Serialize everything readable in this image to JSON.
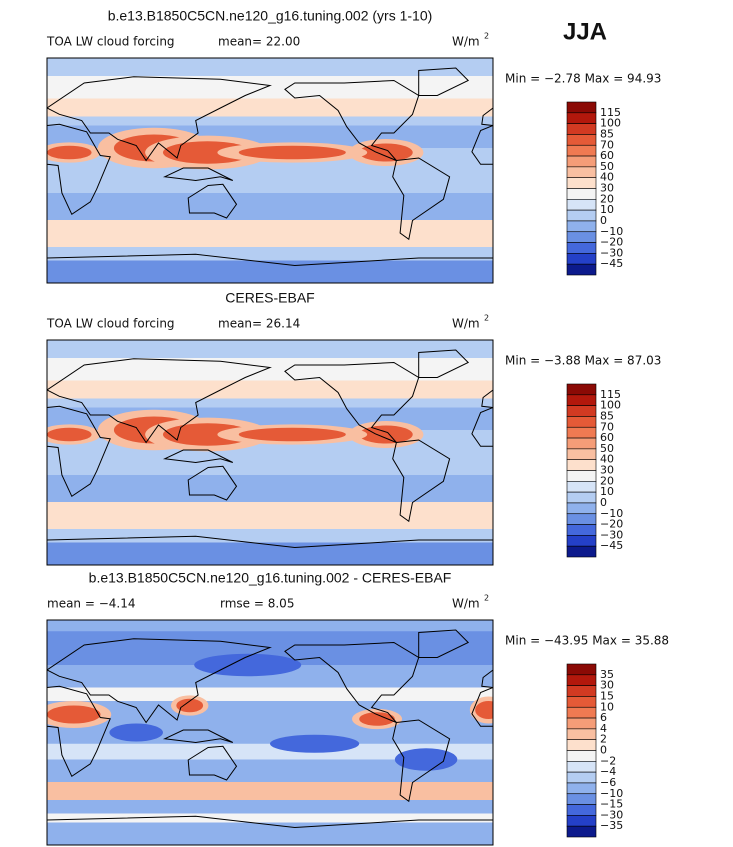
{
  "season": "JJA",
  "panels": [
    {
      "title": "b.e13.B1850C5CN.ne120_g16.tuning.002 (yrs 1-10)",
      "field": "TOA LW cloud forcing",
      "stats": [
        "mean=  22.00"
      ],
      "units": "W/m",
      "units_exp": "2",
      "range": "Min =  −2.78 Max =  94.93",
      "colorbar": {
        "labels": [
          "115",
          "100",
          "85",
          "70",
          "60",
          "50",
          "40",
          "30",
          "20",
          "10",
          "0",
          "−10",
          "−20",
          "−30",
          "−45"
        ],
        "colors": [
          "#8b0a05",
          "#b3180c",
          "#d23a22",
          "#e55a37",
          "#f07a52",
          "#f59d78",
          "#f9bfa1",
          "#fde0cc",
          "#f4f4f4",
          "#d6e4f7",
          "#b4cdf2",
          "#8fb1ec",
          "#6a90e3",
          "#4468dc",
          "#2440c8",
          "#0c1a8c"
        ]
      }
    },
    {
      "title": "CERES-EBAF",
      "field": "TOA LW cloud forcing",
      "stats": [
        "mean=  26.14"
      ],
      "units": "W/m",
      "units_exp": "2",
      "range": "Min =  −3.88 Max =  87.03",
      "colorbar": {
        "labels": [
          "115",
          "100",
          "85",
          "70",
          "60",
          "50",
          "40",
          "30",
          "20",
          "10",
          "0",
          "−10",
          "−20",
          "−30",
          "−45"
        ],
        "colors": [
          "#8b0a05",
          "#b3180c",
          "#d23a22",
          "#e55a37",
          "#f07a52",
          "#f59d78",
          "#f9bfa1",
          "#fde0cc",
          "#f4f4f4",
          "#d6e4f7",
          "#b4cdf2",
          "#8fb1ec",
          "#6a90e3",
          "#4468dc",
          "#2440c8",
          "#0c1a8c"
        ]
      }
    },
    {
      "title": "b.e13.B1850C5CN.ne120_g16.tuning.002 - CERES-EBAF",
      "stats": [
        "mean =  −4.14",
        "rmse =   8.05"
      ],
      "units": "W/m",
      "units_exp": "2",
      "range": "Min = −43.95 Max =  35.88",
      "colorbar": {
        "labels": [
          "35",
          "30",
          "15",
          "10",
          "6",
          "4",
          "2",
          "0",
          "−2",
          "−4",
          "−6",
          "−10",
          "−15",
          "−30",
          "−35"
        ],
        "colors": [
          "#8b0a05",
          "#b3180c",
          "#d23a22",
          "#e55a37",
          "#f07a52",
          "#f59d78",
          "#f9bfa1",
          "#fde0cc",
          "#f4f4f4",
          "#d6e4f7",
          "#b4cdf2",
          "#8fb1ec",
          "#6a90e3",
          "#4468dc",
          "#2440c8",
          "#0c1a8c"
        ]
      }
    }
  ]
}
